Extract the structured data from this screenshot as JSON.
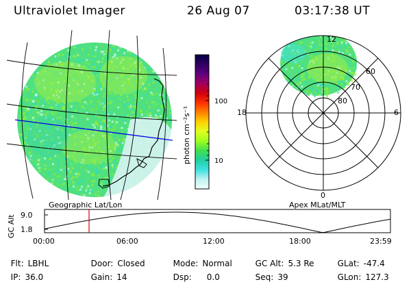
{
  "header": {
    "title": "Ultraviolet Imager",
    "date": "26 Aug 07",
    "time": "03:17:38 UT"
  },
  "left_panel": {
    "caption": "Geographic Lat/Lon"
  },
  "right_panel": {
    "caption": "Apex MLat/MLT",
    "mlt_labels": [
      "12",
      "18",
      "6",
      "0"
    ],
    "mlat_labels": [
      "60",
      "70",
      "80"
    ]
  },
  "colorbar": {
    "unit_label": "photon cm⁻²s⁻¹",
    "tick_labels": [
      "100",
      "10"
    ],
    "colors": [
      "#000040",
      "#300060",
      "#600080",
      "#a00060",
      "#d00010",
      "#ff3000",
      "#ff8000",
      "#ffd000",
      "#e0ff20",
      "#a0ff20",
      "#40e050",
      "#20d0a0",
      "#40e0e0",
      "#c0f0f0",
      "#f0ffff"
    ]
  },
  "altitude_plot": {
    "axis_title": "GC Alt",
    "y_ticks": [
      "9.0",
      "1.8"
    ],
    "x_ticks": [
      "00:00",
      "06:00",
      "12:00",
      "18:00",
      "23:59"
    ],
    "marker_color": "#e00000"
  },
  "status": {
    "flt": {
      "label": "Flt:",
      "value": "LBHL"
    },
    "ip": {
      "label": "IP:",
      "value": "36.0"
    },
    "door": {
      "label": "Door:",
      "value": "Closed"
    },
    "gain": {
      "label": "Gain:",
      "value": "14"
    },
    "mode": {
      "label": "Mode:",
      "value": "Normal"
    },
    "dsp": {
      "label": "Dsp:",
      "value": "0.0"
    },
    "gc_alt": {
      "label": "GC Alt:",
      "value": "5.3 Re"
    },
    "seq": {
      "label": "Seq:",
      "value": "39"
    },
    "glat": {
      "label": "GLat:",
      "value": "-47.4"
    },
    "glon": {
      "label": "GLon:",
      "value": "127.3"
    }
  }
}
